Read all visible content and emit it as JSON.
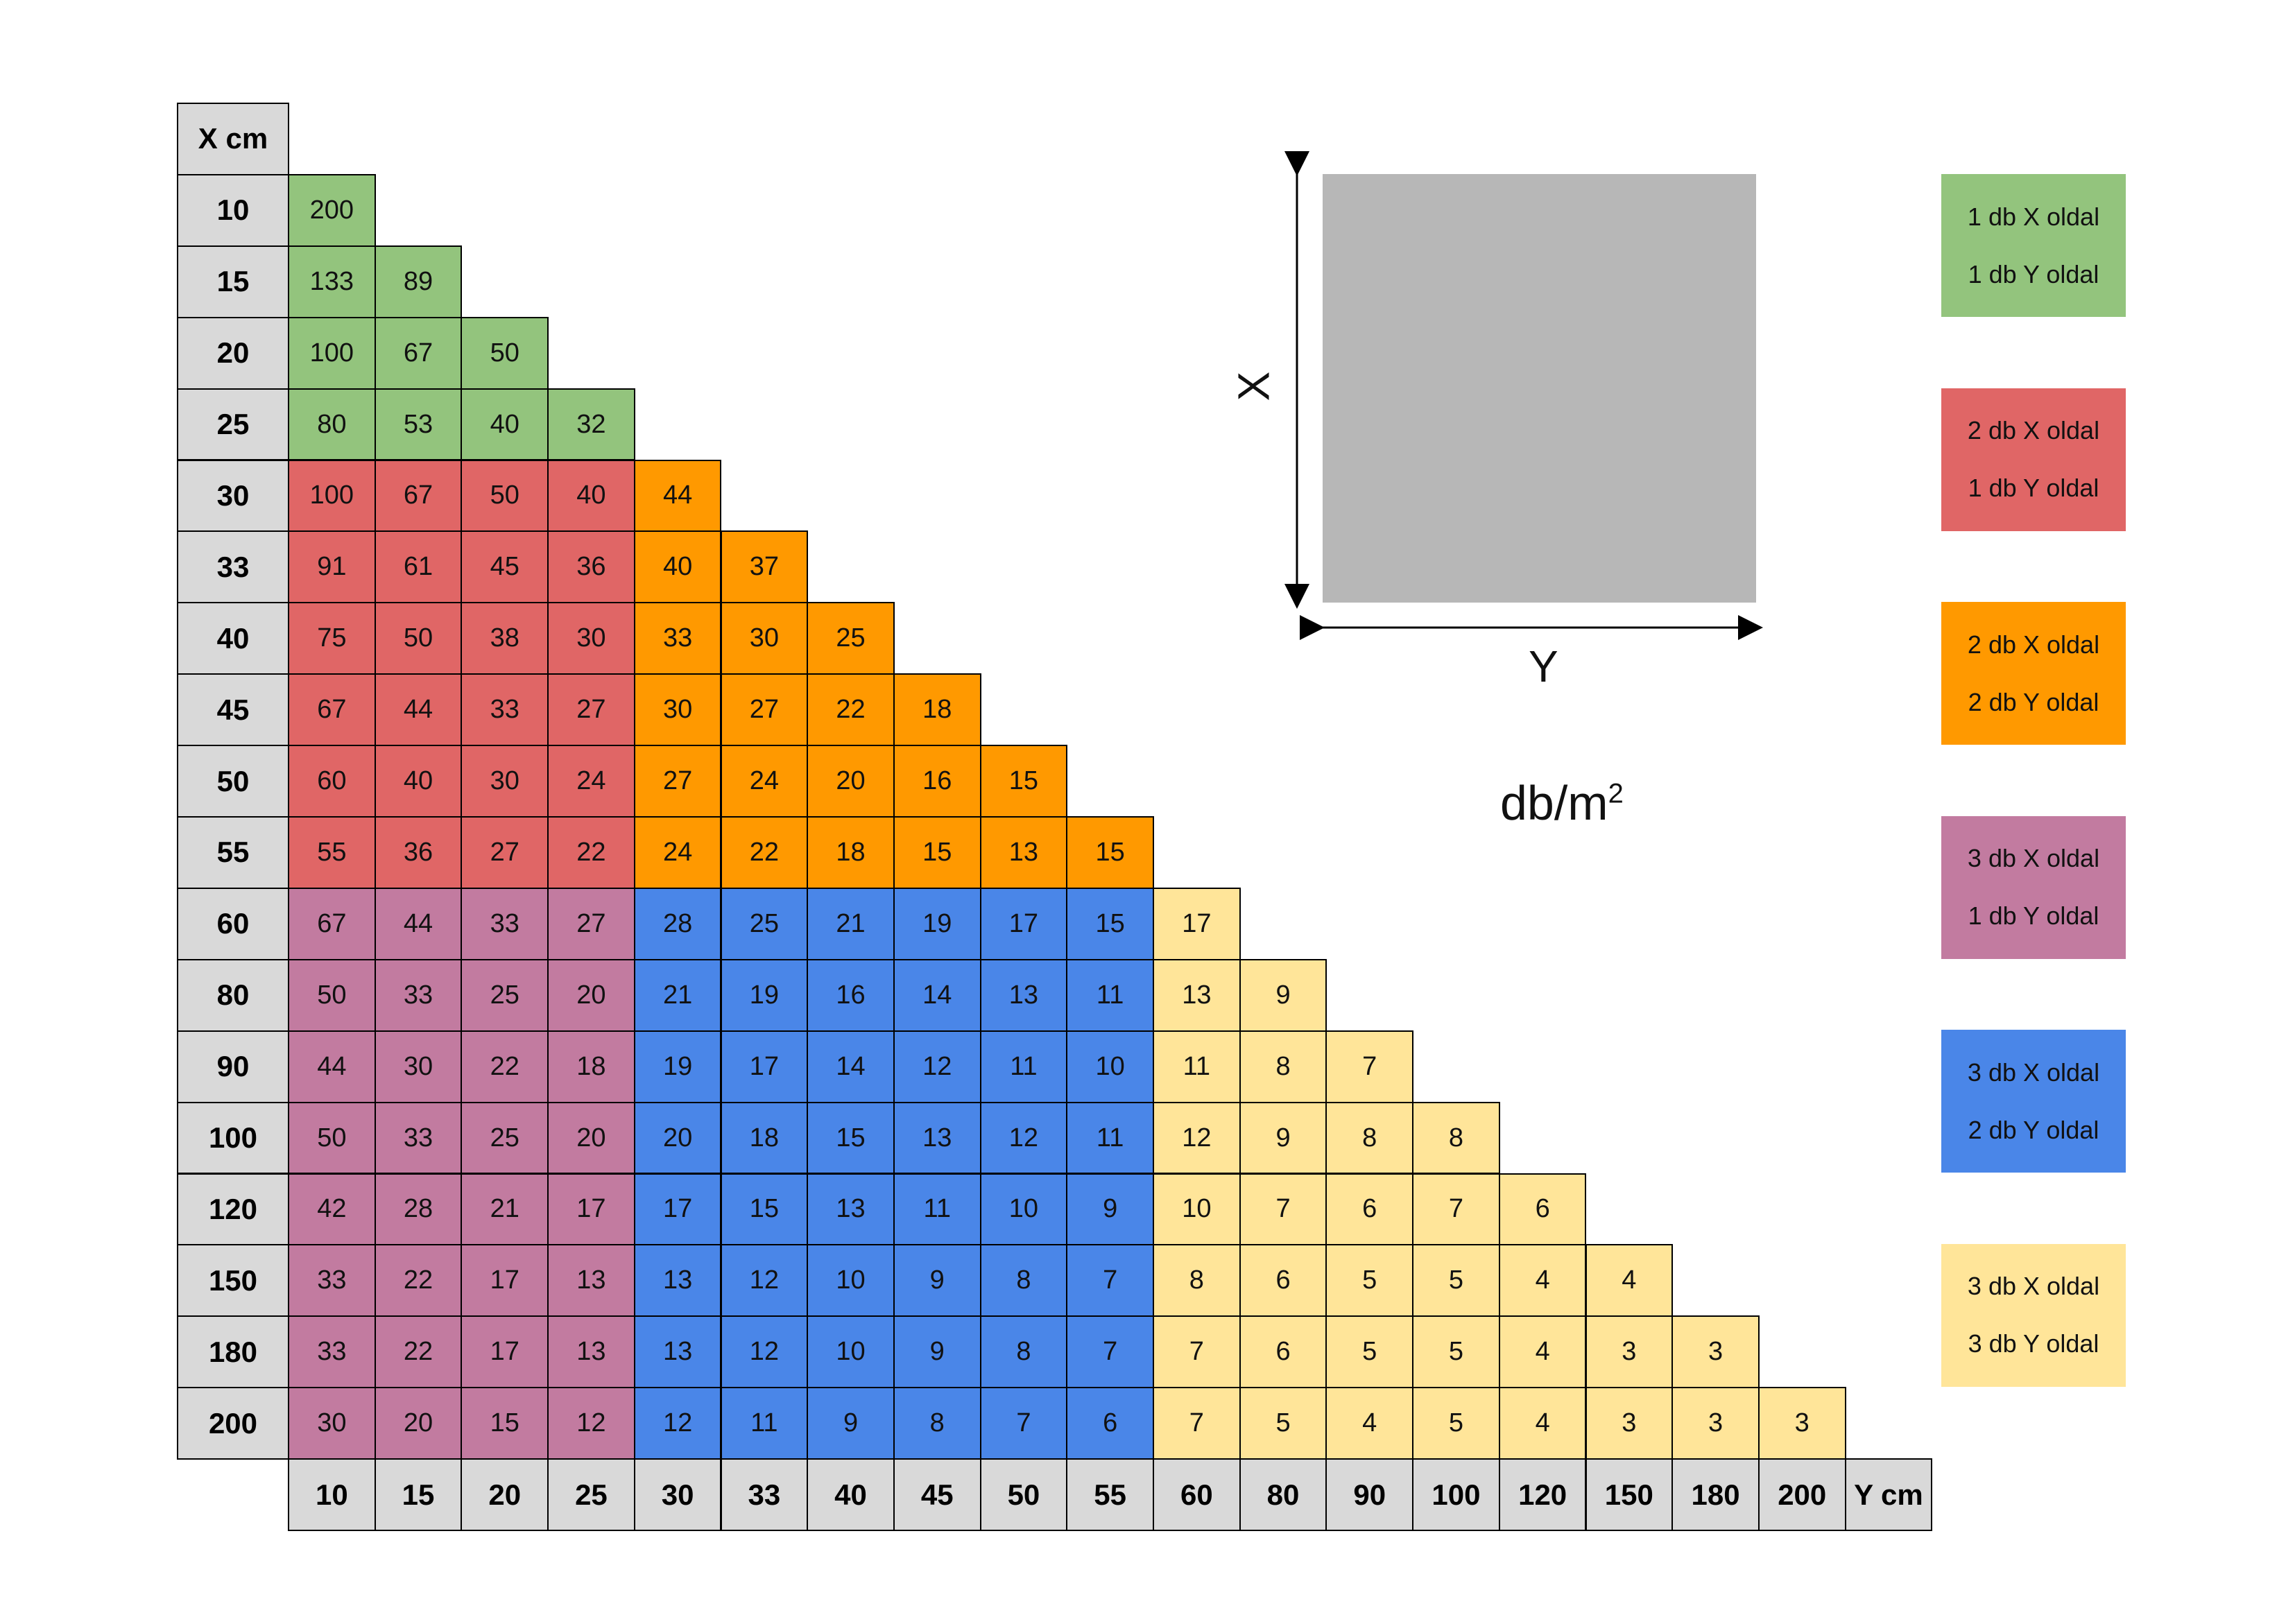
{
  "chart_data": {
    "type": "table",
    "x_header": "X cm",
    "y_header": "Y cm",
    "x_values": [
      "10",
      "15",
      "20",
      "25",
      "30",
      "33",
      "40",
      "45",
      "50",
      "55",
      "60",
      "80",
      "90",
      "100",
      "120",
      "150",
      "180",
      "200"
    ],
    "y_values": [
      "10",
      "15",
      "20",
      "25",
      "30",
      "33",
      "40",
      "45",
      "50",
      "55",
      "60",
      "80",
      "90",
      "100",
      "120",
      "150",
      "180",
      "200"
    ],
    "rows": [
      [
        "200"
      ],
      [
        "133",
        "89"
      ],
      [
        "100",
        "67",
        "50"
      ],
      [
        "80",
        "53",
        "40",
        "32"
      ],
      [
        "100",
        "67",
        "50",
        "40",
        "44"
      ],
      [
        "91",
        "61",
        "45",
        "36",
        "40",
        "37"
      ],
      [
        "75",
        "50",
        "38",
        "30",
        "33",
        "30",
        "25"
      ],
      [
        "67",
        "44",
        "33",
        "27",
        "30",
        "27",
        "22",
        "18"
      ],
      [
        "60",
        "40",
        "30",
        "24",
        "27",
        "24",
        "20",
        "16",
        "15"
      ],
      [
        "55",
        "36",
        "27",
        "22",
        "24",
        "22",
        "18",
        "15",
        "13",
        "15"
      ],
      [
        "67",
        "44",
        "33",
        "27",
        "28",
        "25",
        "21",
        "19",
        "17",
        "15",
        "17"
      ],
      [
        "50",
        "33",
        "25",
        "20",
        "21",
        "19",
        "16",
        "14",
        "13",
        "11",
        "13",
        "9"
      ],
      [
        "44",
        "30",
        "22",
        "18",
        "19",
        "17",
        "14",
        "12",
        "11",
        "10",
        "11",
        "8",
        "7"
      ],
      [
        "50",
        "33",
        "25",
        "20",
        "20",
        "18",
        "15",
        "13",
        "12",
        "11",
        "12",
        "9",
        "8",
        "8"
      ],
      [
        "42",
        "28",
        "21",
        "17",
        "17",
        "15",
        "13",
        "11",
        "10",
        "9",
        "10",
        "7",
        "6",
        "7",
        "6"
      ],
      [
        "33",
        "22",
        "17",
        "13",
        "13",
        "12",
        "10",
        "9",
        "8",
        "7",
        "8",
        "6",
        "5",
        "5",
        "4",
        "4"
      ],
      [
        "33",
        "22",
        "17",
        "13",
        "13",
        "12",
        "10",
        "9",
        "8",
        "7",
        "7",
        "6",
        "5",
        "5",
        "4",
        "3",
        "3"
      ],
      [
        "30",
        "20",
        "15",
        "12",
        "12",
        "11",
        "9",
        "8",
        "7",
        "6",
        "7",
        "5",
        "4",
        "5",
        "4",
        "3",
        "3",
        "3"
      ]
    ],
    "colors": {
      "green": "#93c47d",
      "red": "#e06666",
      "orange": "#ff9900",
      "purple": "#c27ba0",
      "blue": "#4a86e8",
      "yellow": "#ffe599",
      "header": "#d9d9d9"
    },
    "legend": [
      {
        "color": "#93c47d",
        "line1": "1 db X oldal",
        "line2": "1 db Y oldal"
      },
      {
        "color": "#e06666",
        "line1": "2 db X oldal",
        "line2": "1 db Y oldal"
      },
      {
        "color": "#ff9900",
        "line1": "2 db X oldal",
        "line2": "2 db Y oldal"
      },
      {
        "color": "#c27ba0",
        "line1": "3 db X oldal",
        "line2": "1 db Y oldal"
      },
      {
        "color": "#4a86e8",
        "line1": "3 db X oldal",
        "line2": "2 db Y oldal"
      },
      {
        "color": "#ffe599",
        "line1": "3 db X oldal",
        "line2": "3 db Y oldal"
      }
    ]
  },
  "diagram": {
    "x_label": "X",
    "y_label": "Y",
    "unit_base": "db/m",
    "unit_exp": "2"
  }
}
